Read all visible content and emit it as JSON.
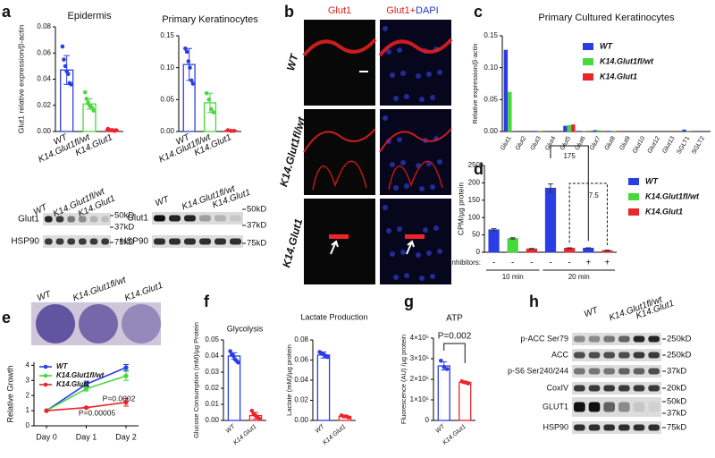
{
  "panel_labels": [
    "a",
    "b",
    "c",
    "d",
    "e",
    "f",
    "g",
    "h"
  ],
  "blot_a1": {
    "headers": [
      "WT",
      "K14.Glut1fl/wt",
      "K14.Glut1"
    ],
    "rows": [
      "Glut1",
      "HSP90"
    ],
    "markers": [
      "50kD",
      "37kD",
      "75kD"
    ]
  },
  "blot_a2": {
    "headers": [
      "WT",
      "K14.Glut1fl/wt",
      "K14.Glut1"
    ],
    "rows": [
      "Glut1",
      "HSP90"
    ],
    "markers": [
      "50kD",
      "37kD",
      "75kD"
    ]
  },
  "images_b": {
    "col_titles": [
      "Glut1",
      "Glut1+",
      "DAPI"
    ],
    "rows": [
      "WT",
      "K14.Glut1fl/wt",
      "K14.Glut1"
    ]
  },
  "plates_e": {
    "labels": [
      "WT",
      "K14.Glut1fl/wt",
      "K14.Glut1"
    ]
  },
  "blot_h": {
    "headers": [
      "WT",
      "K14.Glut1fl/wt",
      "K14.Glut1"
    ],
    "rows": [
      "p-ACC Ser79",
      "ACC",
      "p-S6 Ser240/244",
      "CoxIV",
      "GLUT1",
      "HSP90"
    ],
    "markers": [
      "250kD",
      "250kD",
      "37kD",
      "20kD",
      "50kD",
      "37kD",
      "75kD"
    ]
  },
  "chart_data": [
    {
      "type": "bar",
      "title": "Epidermis",
      "ylabel": "Glut1 relative expression/β-actin",
      "categories": [
        "WT",
        "K14.Glut1fl/wt",
        "K14.Glut1"
      ],
      "values": [
        0.047,
        0.021,
        0.001
      ],
      "errors": [
        0.011,
        0.004,
        0.0005
      ],
      "points": [
        [
          0.065,
          0.055,
          0.05,
          0.046,
          0.044,
          0.037,
          0.036
        ],
        [
          0.03,
          0.025,
          0.022,
          0.02,
          0.019,
          0.018,
          0.016
        ],
        [
          0.002,
          0.001,
          0.001,
          0.001,
          0.0005,
          0.001
        ]
      ],
      "colors": [
        "#2b3ee6",
        "#47d93b",
        "#e8262b"
      ],
      "bar_style": "outline",
      "ylim": [
        0,
        0.08
      ],
      "yticks": [
        {
          "value": 0,
          "label": "0.00"
        },
        {
          "value": 0.02,
          "label": "0.02"
        },
        {
          "value": 0.04,
          "label": "0.04"
        },
        {
          "value": 0.06,
          "label": "0.06"
        },
        {
          "value": 0.08,
          "label": "0.08"
        }
      ]
    },
    {
      "type": "bar",
      "title": "Primary Keratinocytes",
      "categories": [
        "WT",
        "K14.Glut1fl/wt",
        "K14.Glut1"
      ],
      "values": [
        0.105,
        0.045,
        0.0015
      ],
      "errors": [
        0.025,
        0.015,
        0.0005
      ],
      "points": [
        [
          0.13,
          0.125,
          0.11,
          0.1,
          0.08,
          0.075
        ],
        [
          0.06,
          0.05,
          0.035,
          0.03
        ],
        [
          0.002,
          0.001,
          0.001
        ]
      ],
      "colors": [
        "#2b3ee6",
        "#47d93b",
        "#e8262b"
      ],
      "bar_style": "outline",
      "ylim": [
        0,
        0.15
      ],
      "yticks": [
        {
          "value": 0,
          "label": "0.00"
        },
        {
          "value": 0.05,
          "label": "0.05"
        },
        {
          "value": 0.1,
          "label": "0.10"
        },
        {
          "value": 0.15,
          "label": "0.15"
        }
      ]
    },
    {
      "type": "bar",
      "title": "Primary Cultured Keratinocytes",
      "ylabel": "Relative expression/β-actin",
      "categories": [
        "Glut1",
        "Glut2",
        "Glut3",
        "Glut4",
        "Glut5",
        "Glut6",
        "Glut7",
        "Glut8",
        "Glut9",
        "Glut10",
        "Glut12",
        "Glut13",
        "SGLT1",
        "SGLT2"
      ],
      "series": [
        {
          "name": "WT",
          "color": "#2b3ee6",
          "values": [
            0.128,
            0,
            0.001,
            0,
            0.009,
            0.001,
            0.002,
            0.001,
            0,
            0,
            0,
            0,
            0.003,
            0
          ]
        },
        {
          "name": "K14.Glut1fl/wt",
          "color": "#47d93b",
          "values": [
            0.062,
            0,
            0.001,
            0,
            0.01,
            0.001,
            0.002,
            0.001,
            0,
            0,
            0,
            0,
            0.001,
            0
          ]
        },
        {
          "name": "K14.Glut1",
          "color": "#e8262b",
          "values": [
            0.001,
            0,
            0.001,
            0,
            0.011,
            0.001,
            0.001,
            0.001,
            0,
            0,
            0,
            0,
            0.001,
            0
          ]
        }
      ],
      "ylim": [
        0,
        0.15
      ],
      "yticks": [
        {
          "value": 0,
          "label": "0.00"
        },
        {
          "value": 0.05,
          "label": "0.05"
        },
        {
          "value": 0.1,
          "label": "0.10"
        },
        {
          "value": 0.15,
          "label": "0.15"
        }
      ]
    },
    {
      "type": "bar",
      "ylabel": "CPM/µg protein",
      "values": [
        65,
        40,
        10,
        185,
        12,
        12,
        5
      ],
      "errors": [
        3,
        2,
        1,
        12,
        1,
        1,
        1
      ],
      "colors": [
        "#2b3ee6",
        "#47d93b",
        "#e8262b",
        "#2b3ee6",
        "#e8262b",
        "#2b3ee6",
        "#e8262b"
      ],
      "bar_style": "filled",
      "inhibitors_label": "Inhibitors:",
      "inhibitors": [
        "-",
        "-",
        "-",
        "-",
        "-",
        "+",
        "+"
      ],
      "group_labels": [
        "10 min",
        "20 min"
      ],
      "annotations": [
        "175",
        "7.5"
      ],
      "legend": [
        {
          "name": "WT",
          "color": "#2b3ee6"
        },
        {
          "name": "K14.Glut1fl/wt",
          "color": "#47d93b"
        },
        {
          "name": "K14.Glut1",
          "color": "#e8262b"
        }
      ],
      "ylim": [
        0,
        250
      ],
      "yticks": [
        0,
        50,
        100,
        150,
        200,
        250
      ]
    },
    {
      "type": "line",
      "ylabel": "Relative Growth",
      "x": [
        "Day 0",
        "Day 1",
        "Day 2"
      ],
      "series": [
        {
          "name": "WT",
          "color": "#2b3ee6",
          "values": [
            1,
            2.75,
            3.85
          ],
          "errors": [
            null,
            0.2,
            0.2
          ]
        },
        {
          "name": "K14.Glut1fl/wt",
          "color": "#47d93b",
          "values": [
            1,
            2.45,
            3.3
          ],
          "errors": [
            null,
            0.15,
            0.3
          ]
        },
        {
          "name": "K14.Glut1",
          "color": "#e8262b",
          "values": [
            1,
            1.2,
            1.55
          ],
          "errors": [
            null,
            0.05,
            0.25
          ]
        }
      ],
      "annotations": [
        "P=0.00005",
        "P=0.0002"
      ],
      "ylim": [
        0,
        4.2
      ],
      "yticks": [
        0,
        1,
        2,
        3,
        4
      ]
    },
    {
      "type": "bar",
      "title": "Glycolysis",
      "ylabel": "Glucose Consumption (mM)/µg Protein",
      "categories": [
        "WT",
        "K14.Glut1"
      ],
      "values": [
        0.04,
        0.003
      ],
      "errors": [
        0.002,
        0.002
      ],
      "points": [
        [
          0.043,
          0.041,
          0.04,
          0.038,
          0.037,
          0.036
        ],
        [
          0.006,
          0.004,
          0.003,
          0.002,
          0.001
        ]
      ],
      "colors": [
        "#2b3ee6",
        "#e8262b"
      ],
      "bar_style": "outline",
      "ylim": [
        0,
        0.05
      ],
      "yticks": [
        {
          "value": 0,
          "label": "0.00"
        },
        {
          "value": 0.01,
          "label": "0.01"
        },
        {
          "value": 0.02,
          "label": "0.02"
        },
        {
          "value": 0.03,
          "label": "0.03"
        },
        {
          "value": 0.04,
          "label": "0.04"
        },
        {
          "value": 0.05,
          "label": "0.05"
        }
      ]
    },
    {
      "type": "bar",
      "title": "Lactate Production",
      "ylabel": "Lactate (mM)/µg protein",
      "categories": [
        "WT",
        "K14.Glut1"
      ],
      "values": [
        0.065,
        0.004
      ],
      "errors": [
        0.003,
        0.001
      ],
      "points": [
        [
          0.068,
          0.067,
          0.066,
          0.065,
          0.064,
          0.063
        ],
        [
          0.005,
          0.004,
          0.004,
          0.003
        ]
      ],
      "colors": [
        "#2b3ee6",
        "#e8262b"
      ],
      "bar_style": "outline",
      "ylim": [
        0,
        0.08
      ],
      "yticks": [
        {
          "value": 0,
          "label": "0.00"
        },
        {
          "value": 0.02,
          "label": "0.02"
        },
        {
          "value": 0.04,
          "label": "0.04"
        },
        {
          "value": 0.06,
          "label": "0.06"
        },
        {
          "value": 0.08,
          "label": "0.08"
        }
      ]
    },
    {
      "type": "bar",
      "title": "ATP",
      "ylabel": "Fluorescence (AU) /µg protein",
      "categories": [
        "WT",
        "K14.Glut1"
      ],
      "values": [
        265000,
        185000
      ],
      "errors": [
        20000,
        5000
      ],
      "points": [
        [
          290000,
          260000,
          250000
        ],
        [
          190000,
          185000,
          180000
        ]
      ],
      "colors": [
        "#2b3ee6",
        "#e8262b"
      ],
      "bar_style": "outline",
      "annotations": [
        "P=0.002"
      ],
      "ylim": [
        0,
        400000
      ],
      "yticks": [
        0,
        {
          "value": 100000,
          "label": "1×10⁵"
        },
        {
          "value": 200000,
          "label": "2×10⁵"
        },
        {
          "value": 300000,
          "label": "3×10⁵"
        },
        {
          "value": 400000,
          "label": "4×10⁵"
        }
      ]
    }
  ]
}
